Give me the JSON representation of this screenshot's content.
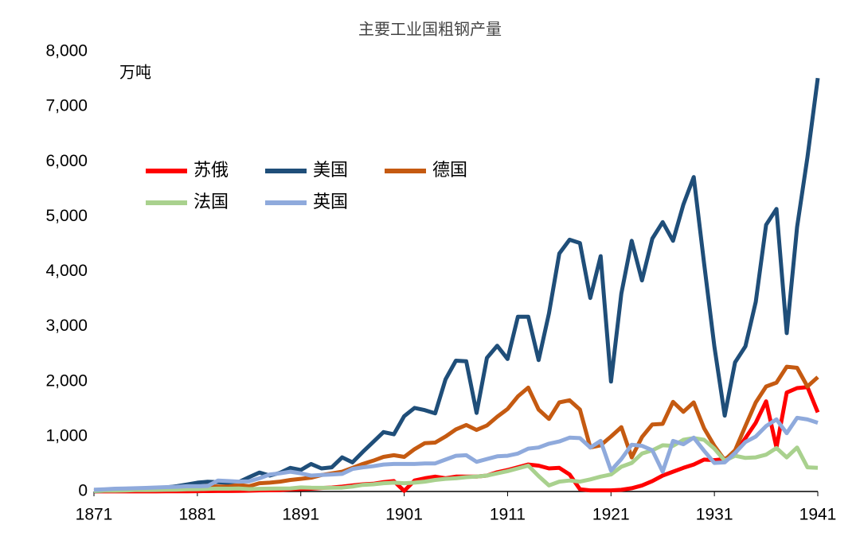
{
  "chart_data": {
    "type": "line",
    "title": "主要工业国粗钢产量",
    "unit_label": "万吨",
    "x": [
      1871,
      1872,
      1873,
      1874,
      1875,
      1876,
      1877,
      1878,
      1879,
      1880,
      1881,
      1882,
      1883,
      1884,
      1885,
      1886,
      1887,
      1888,
      1889,
      1890,
      1891,
      1892,
      1893,
      1894,
      1895,
      1896,
      1897,
      1898,
      1899,
      1900,
      1901,
      1902,
      1903,
      1904,
      1905,
      1906,
      1907,
      1908,
      1909,
      1910,
      1911,
      1912,
      1913,
      1914,
      1915,
      1916,
      1917,
      1918,
      1919,
      1920,
      1921,
      1922,
      1923,
      1924,
      1925,
      1926,
      1927,
      1928,
      1929,
      1930,
      1931,
      1932,
      1933,
      1934,
      1935,
      1936,
      1937,
      1938,
      1939,
      1940,
      1941
    ],
    "xlim": [
      1871,
      1941
    ],
    "xticks": [
      1871,
      1881,
      1891,
      1901,
      1911,
      1921,
      1931,
      1941
    ],
    "ylim": [
      0,
      8000
    ],
    "yticks": [
      0,
      {
        "value": 1000,
        "label": "1,000"
      },
      {
        "value": 2000,
        "label": "2,000"
      },
      {
        "value": 3000,
        "label": "3,000"
      },
      {
        "value": 4000,
        "label": "4,000"
      },
      {
        "value": 5000,
        "label": "5,000"
      },
      {
        "value": 6000,
        "label": "6,000"
      },
      {
        "value": 7000,
        "label": "7,000"
      },
      {
        "value": 8000,
        "label": "8,000"
      }
    ],
    "grid": false,
    "series": [
      {
        "name": "苏俄",
        "color": "#ff0000",
        "values": [
          1,
          1,
          1,
          1,
          1,
          2,
          2,
          3,
          5,
          5,
          6,
          7,
          8,
          9,
          10,
          15,
          20,
          22,
          26,
          38,
          43,
          51,
          63,
          72,
          88,
          110,
          130,
          140,
          170,
          190,
          10,
          200,
          240,
          270,
          240,
          270,
          270,
          270,
          290,
          350,
          390,
          440,
          490,
          470,
          420,
          430,
          310,
          40,
          20,
          20,
          20,
          30,
          60,
          110,
          190,
          290,
          360,
          430,
          490,
          580,
          570,
          590,
          690,
          970,
          1250,
          1640,
          800,
          1800,
          1880,
          1900,
          1440
        ]
      },
      {
        "name": "美国",
        "color": "#1f4e79",
        "values": [
          4,
          14,
          20,
          21,
          39,
          60,
          58,
          74,
          95,
          127,
          160,
          177,
          170,
          156,
          172,
          260,
          345,
          290,
          340,
          430,
          390,
          500,
          420,
          440,
          620,
          530,
          720,
          900,
          1080,
          1040,
          1370,
          1520,
          1480,
          1420,
          2040,
          2380,
          2370,
          1430,
          2430,
          2650,
          2410,
          3180,
          3180,
          2390,
          3240,
          4330,
          4580,
          4520,
          3520,
          4280,
          2000,
          3600,
          4560,
          3840,
          4600,
          4900,
          4560,
          5220,
          5720,
          4150,
          2640,
          1380,
          2350,
          2640,
          3450,
          4850,
          5140,
          2880,
          4810,
          6080,
          7520
        ]
      },
      {
        "name": "德国",
        "color": "#c55a11",
        "values": [
          25,
          30,
          35,
          35,
          37,
          39,
          40,
          50,
          50,
          66,
          85,
          100,
          90,
          90,
          120,
          95,
          150,
          160,
          180,
          210,
          230,
          250,
          300,
          330,
          360,
          430,
          500,
          560,
          630,
          660,
          630,
          770,
          880,
          890,
          1000,
          1130,
          1210,
          1120,
          1200,
          1360,
          1500,
          1730,
          1890,
          1490,
          1320,
          1620,
          1660,
          1490,
          800,
          840,
          1000,
          1170,
          620,
          990,
          1220,
          1230,
          1630,
          1450,
          1620,
          1150,
          830,
          570,
          750,
          1190,
          1620,
          1910,
          1980,
          2270,
          2250,
          1910,
          2080
        ]
      },
      {
        "name": "法国",
        "color": "#a9d18e",
        "values": [
          8,
          14,
          15,
          17,
          26,
          26,
          28,
          31,
          33,
          39,
          42,
          46,
          52,
          50,
          55,
          43,
          49,
          52,
          53,
          57,
          74,
          68,
          66,
          67,
          70,
          90,
          120,
          130,
          150,
          160,
          150,
          160,
          180,
          210,
          230,
          240,
          260,
          270,
          290,
          330,
          370,
          420,
          470,
          280,
          110,
          180,
          200,
          180,
          220,
          270,
          310,
          450,
          520,
          690,
          750,
          840,
          830,
          940,
          970,
          940,
          780,
          560,
          650,
          610,
          620,
          670,
          790,
          620,
          800,
          440,
          430
        ]
      },
      {
        "name": "英国",
        "color": "#8faadc",
        "values": [
          33,
          40,
          50,
          55,
          60,
          65,
          72,
          80,
          85,
          95,
          95,
          100,
          200,
          190,
          180,
          185,
          240,
          310,
          330,
          360,
          330,
          290,
          300,
          310,
          320,
          410,
          440,
          460,
          490,
          500,
          500,
          500,
          510,
          510,
          580,
          650,
          660,
          540,
          590,
          640,
          650,
          690,
          780,
          800,
          870,
          910,
          980,
          970,
          800,
          920,
          380,
          590,
          850,
          830,
          750,
          360,
          920,
          860,
          980,
          740,
          520,
          530,
          700,
          900,
          1000,
          1190,
          1310,
          1060,
          1340,
          1310,
          1250
        ]
      }
    ]
  }
}
